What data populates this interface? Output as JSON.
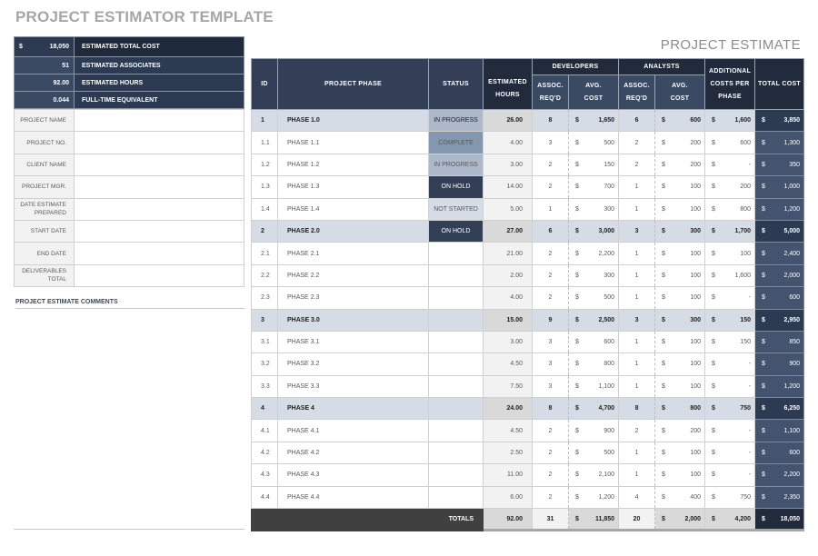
{
  "header": {
    "title": "PROJECT ESTIMATOR TEMPLATE",
    "subtitle": "PROJECT ESTIMATE"
  },
  "summary": [
    {
      "currency": "$",
      "value": "18,050",
      "label": "ESTIMATED TOTAL COST"
    },
    {
      "currency": "",
      "value": "51",
      "label": "ESTIMATED ASSOCIATES"
    },
    {
      "currency": "",
      "value": "92.00",
      "label": "ESTIMATED HOURS"
    },
    {
      "currency": "",
      "value": "0.044",
      "label": "FULL-TIME EQUIVALENT"
    }
  ],
  "info_fields": [
    {
      "label": "PROJECT NAME",
      "value": ""
    },
    {
      "label": "PROJECT NO.",
      "value": ""
    },
    {
      "label": "CLIENT NAME",
      "value": ""
    },
    {
      "label": "PROJECT MGR.",
      "value": ""
    },
    {
      "label": "DATE ESTIMATE PREPARED",
      "value": ""
    },
    {
      "label": "START DATE",
      "value": ""
    },
    {
      "label": "END DATE",
      "value": ""
    },
    {
      "label": "DELIVERABLES TOTAL",
      "value": ""
    }
  ],
  "comments": {
    "label": "PROJECT ESTIMATE COMMENTS",
    "value": ""
  },
  "table": {
    "headers": {
      "id": "ID",
      "phase": "PROJECT PHASE",
      "status": "STATUS",
      "hours": "ESTIMATED HOURS",
      "developers": "DEVELOPERS",
      "analysts": "ANALYSTS",
      "assoc": "ASSOC. REQ'D",
      "avg_cost": "AVG. COST",
      "additional": "ADDITIONAL COSTS PER PHASE",
      "total": "TOTAL COST"
    },
    "currency": "$",
    "rows": [
      {
        "group": true,
        "id": "1",
        "phase": "PHASE 1.0",
        "status": "IN PROGRESS",
        "hours": "26.00",
        "dev_assoc": "8",
        "dev_cost": "1,650",
        "an_assoc": "6",
        "an_cost": "600",
        "additional": "1,600",
        "total": "3,850"
      },
      {
        "group": false,
        "id": "1.1",
        "phase": "PHASE 1.1",
        "status": "COMPLETE",
        "hours": "4.00",
        "dev_assoc": "3",
        "dev_cost": "500",
        "an_assoc": "2",
        "an_cost": "200",
        "additional": "600",
        "total": "1,300"
      },
      {
        "group": false,
        "id": "1.2",
        "phase": "PHASE 1.2",
        "status": "IN PROGRESS",
        "hours": "3.00",
        "dev_assoc": "2",
        "dev_cost": "150",
        "an_assoc": "2",
        "an_cost": "200",
        "additional": "-",
        "total": "350"
      },
      {
        "group": false,
        "id": "1.3",
        "phase": "PHASE 1.3",
        "status": "ON HOLD",
        "hours": "14.00",
        "dev_assoc": "2",
        "dev_cost": "700",
        "an_assoc": "1",
        "an_cost": "100",
        "additional": "200",
        "total": "1,000"
      },
      {
        "group": false,
        "id": "1.4",
        "phase": "PHASE 1.4",
        "status": "NOT STARTED",
        "hours": "5.00",
        "dev_assoc": "1",
        "dev_cost": "300",
        "an_assoc": "1",
        "an_cost": "100",
        "additional": "800",
        "total": "1,200"
      },
      {
        "group": true,
        "id": "2",
        "phase": "PHASE 2.0",
        "status": "ON HOLD",
        "hours": "27.00",
        "dev_assoc": "6",
        "dev_cost": "3,000",
        "an_assoc": "3",
        "an_cost": "300",
        "additional": "1,700",
        "total": "5,000"
      },
      {
        "group": false,
        "id": "2.1",
        "phase": "PHASE 2.1",
        "status": "",
        "hours": "21.00",
        "dev_assoc": "2",
        "dev_cost": "2,200",
        "an_assoc": "1",
        "an_cost": "100",
        "additional": "100",
        "total": "2,400"
      },
      {
        "group": false,
        "id": "2.2",
        "phase": "PHASE 2.2",
        "status": "",
        "hours": "2.00",
        "dev_assoc": "2",
        "dev_cost": "300",
        "an_assoc": "1",
        "an_cost": "100",
        "additional": "1,600",
        "total": "2,000"
      },
      {
        "group": false,
        "id": "2.3",
        "phase": "PHASE 2.3",
        "status": "",
        "hours": "4.00",
        "dev_assoc": "2",
        "dev_cost": "500",
        "an_assoc": "1",
        "an_cost": "100",
        "additional": "-",
        "total": "600"
      },
      {
        "group": true,
        "id": "3",
        "phase": "PHASE 3.0",
        "status": "",
        "hours": "15.00",
        "dev_assoc": "9",
        "dev_cost": "2,500",
        "an_assoc": "3",
        "an_cost": "300",
        "additional": "150",
        "total": "2,950"
      },
      {
        "group": false,
        "id": "3.1",
        "phase": "PHASE 3.1",
        "status": "",
        "hours": "3.00",
        "dev_assoc": "3",
        "dev_cost": "600",
        "an_assoc": "1",
        "an_cost": "100",
        "additional": "150",
        "total": "850"
      },
      {
        "group": false,
        "id": "3.2",
        "phase": "PHASE 3.2",
        "status": "",
        "hours": "4.50",
        "dev_assoc": "3",
        "dev_cost": "800",
        "an_assoc": "1",
        "an_cost": "100",
        "additional": "-",
        "total": "900"
      },
      {
        "group": false,
        "id": "3.3",
        "phase": "PHASE 3.3",
        "status": "",
        "hours": "7.50",
        "dev_assoc": "3",
        "dev_cost": "1,100",
        "an_assoc": "1",
        "an_cost": "100",
        "additional": "-",
        "total": "1,200"
      },
      {
        "group": true,
        "id": "4",
        "phase": "PHASE 4",
        "status": "",
        "hours": "24.00",
        "dev_assoc": "8",
        "dev_cost": "4,700",
        "an_assoc": "8",
        "an_cost": "800",
        "additional": "750",
        "total": "6,250"
      },
      {
        "group": false,
        "id": "4.1",
        "phase": "PHASE 4.1",
        "status": "",
        "hours": "4.50",
        "dev_assoc": "2",
        "dev_cost": "900",
        "an_assoc": "2",
        "an_cost": "200",
        "additional": "-",
        "total": "1,100"
      },
      {
        "group": false,
        "id": "4.2",
        "phase": "PHASE 4.2",
        "status": "",
        "hours": "2.50",
        "dev_assoc": "2",
        "dev_cost": "500",
        "an_assoc": "1",
        "an_cost": "100",
        "additional": "-",
        "total": "600"
      },
      {
        "group": false,
        "id": "4.3",
        "phase": "PHASE 4.3",
        "status": "",
        "hours": "11.00",
        "dev_assoc": "2",
        "dev_cost": "2,100",
        "an_assoc": "1",
        "an_cost": "100",
        "additional": "-",
        "total": "2,200"
      },
      {
        "group": false,
        "id": "4.4",
        "phase": "PHASE 4.4",
        "status": "",
        "hours": "6.00",
        "dev_assoc": "2",
        "dev_cost": "1,200",
        "an_assoc": "4",
        "an_cost": "400",
        "additional": "750",
        "total": "2,350"
      }
    ],
    "totals": {
      "label": "TOTALS",
      "hours": "92.00",
      "dev_assoc": "31",
      "dev_cost": "11,850",
      "an_assoc": "20",
      "an_cost": "2,000",
      "additional": "4,200",
      "total": "18,050"
    }
  },
  "colors": {
    "header_dark": "#212b3c",
    "header_mid": "#323f56",
    "total_col": "#44546e",
    "group_row": "#d6dce5",
    "totals_bar": "#3f403f"
  }
}
